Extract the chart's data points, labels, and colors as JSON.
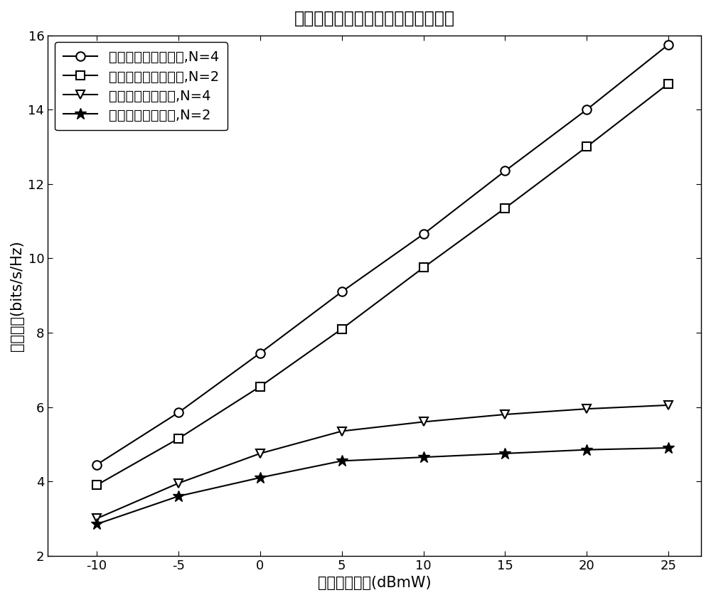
{
  "title": "主信道和窃听信道瞬时状态信息已知",
  "xlabel": "输入信号功率(dBmW)",
  "ylabel": "安全容量(bits/s/Hz)",
  "x": [
    -10,
    -5,
    0,
    5,
    10,
    15,
    20,
    25
  ],
  "series": [
    {
      "label_cn": "多模协作预编码方法,",
      "label_n": "N=4",
      "y": [
        4.45,
        5.85,
        7.45,
        9.1,
        10.65,
        12.35,
        14.0,
        15.75
      ],
      "marker": "o",
      "color": "#000000",
      "markersize": 9,
      "linewidth": 1.5,
      "markerfacecolor": "white",
      "markeredgewidth": 1.5
    },
    {
      "label_cn": "多模协作预编码方法,",
      "label_n": "N=2",
      "y": [
        3.9,
        5.15,
        6.55,
        8.1,
        9.75,
        11.35,
        13.0,
        14.7
      ],
      "marker": "s",
      "color": "#000000",
      "markersize": 8,
      "linewidth": 1.5,
      "markerfacecolor": "white",
      "markeredgewidth": 1.5
    },
    {
      "label_cn": "多模切换选择方法,",
      "label_n": "N=4",
      "y": [
        3.0,
        3.95,
        4.75,
        5.35,
        5.6,
        5.8,
        5.95,
        6.05
      ],
      "marker": "v",
      "color": "#000000",
      "markersize": 9,
      "linewidth": 1.5,
      "markerfacecolor": "white",
      "markeredgewidth": 1.5
    },
    {
      "label_cn": "多模切换选择方法,",
      "label_n": "N=2",
      "y": [
        2.85,
        3.6,
        4.1,
        4.55,
        4.65,
        4.75,
        4.85,
        4.9
      ],
      "marker": "*",
      "color": "#000000",
      "markersize": 12,
      "linewidth": 1.5,
      "markerfacecolor": "black",
      "markeredgewidth": 1.0
    }
  ],
  "xlim": [
    -13,
    27
  ],
  "ylim": [
    2,
    16
  ],
  "xticks": [
    -10,
    -5,
    0,
    5,
    10,
    15,
    20,
    25
  ],
  "yticks": [
    2,
    4,
    6,
    8,
    10,
    12,
    14,
    16
  ],
  "legend_loc": "upper left",
  "legend_fontsize": 14,
  "title_fontsize": 17,
  "axis_label_fontsize": 15,
  "tick_fontsize": 13,
  "background_color": "#ffffff"
}
